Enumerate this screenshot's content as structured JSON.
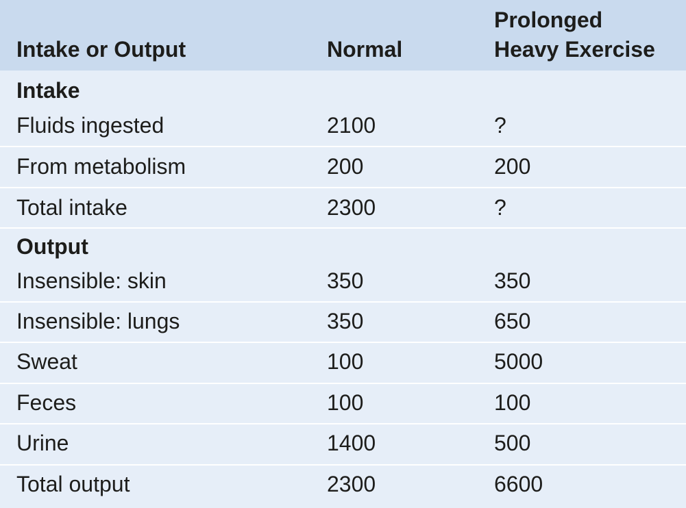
{
  "headers": {
    "intake_or_output": "Intake or Output",
    "normal": "Normal",
    "exercise_line1": "Prolonged",
    "exercise_line2": "Heavy Exercise"
  },
  "intake": {
    "section_label": "Intake",
    "rows": [
      {
        "label": "Fluids ingested",
        "normal": "2100",
        "exercise": "?"
      },
      {
        "label": "From metabolism",
        "normal": "200",
        "exercise": "200"
      },
      {
        "label": "Total intake",
        "normal": "2300",
        "exercise": "?"
      }
    ]
  },
  "output": {
    "section_label": "Output",
    "rows": [
      {
        "label": "Insensible: skin",
        "normal": "350",
        "exercise": "350"
      },
      {
        "label": "Insensible: lungs",
        "normal": "350",
        "exercise": "650"
      },
      {
        "label": "Sweat",
        "normal": "100",
        "exercise": "5000"
      },
      {
        "label": "Feces",
        "normal": "100",
        "exercise": "100"
      },
      {
        "label": "Urine",
        "normal": "1400",
        "exercise": "500"
      },
      {
        "label": "Total output",
        "normal": "2300",
        "exercise": "6600"
      }
    ]
  },
  "colors": {
    "header_bg": "#c9daee",
    "body_bg": "#e6eef8",
    "divider": "#ffffff",
    "text": "#1d1d1b"
  }
}
